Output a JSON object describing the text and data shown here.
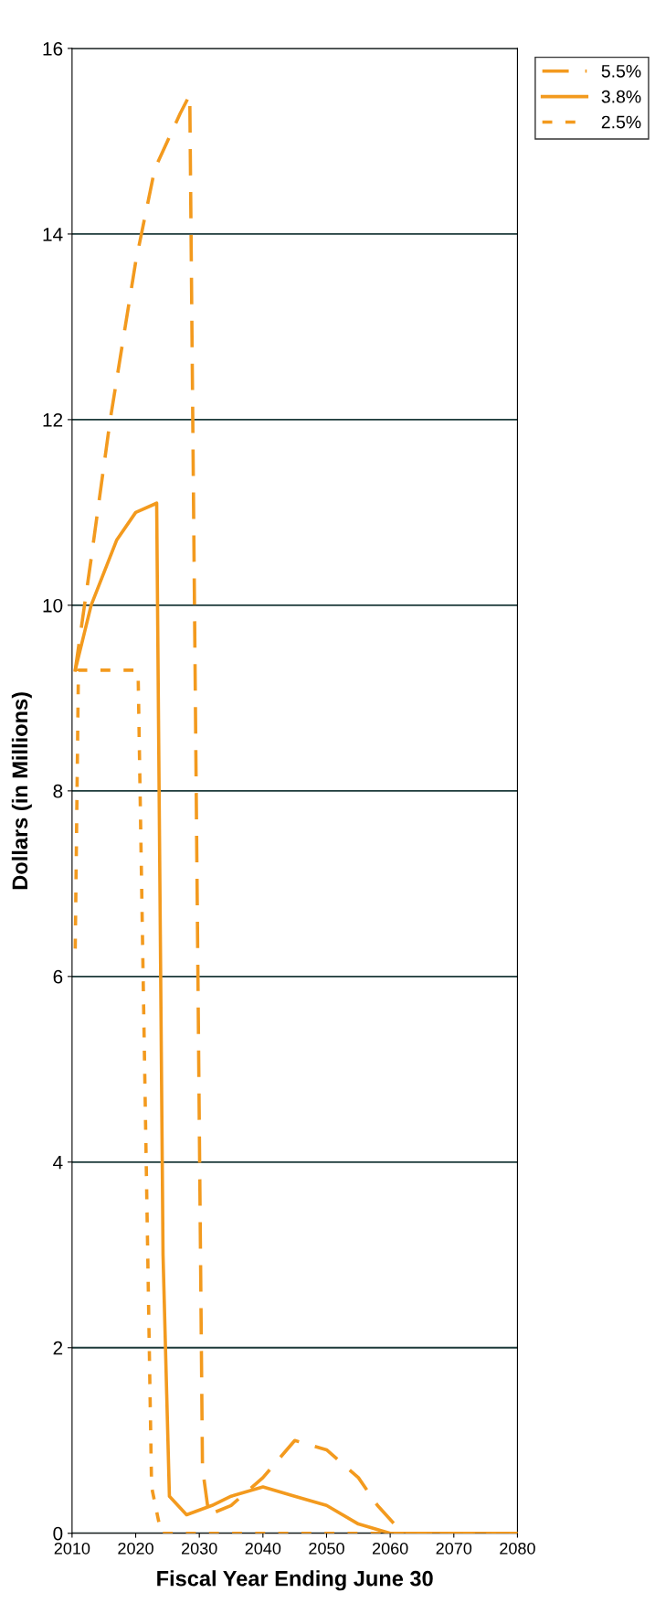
{
  "chart_data": {
    "type": "line",
    "xlabel": "Fiscal Year Ending June 30",
    "ylabel": "Dollars (in Millions)",
    "xlim": [
      2010,
      2080
    ],
    "xticks": [
      2010,
      2020,
      2030,
      2040,
      2050,
      2060,
      2070,
      2080
    ],
    "ylim": [
      0,
      16
    ],
    "yticks": [
      0,
      2,
      4,
      6,
      8,
      10,
      12,
      14,
      16
    ],
    "grid": "y",
    "legend": "right",
    "marker": "none",
    "series": [
      {
        "name": "5.5%",
        "color": "#f39a1e",
        "line_style": "dashed",
        "x": [
          2010.5,
          2013,
          2016,
          2020,
          2023,
          2027,
          2028.5,
          2030.5,
          2031.5,
          2035,
          2040,
          2045,
          2050,
          2055,
          2058,
          2062,
          2080
        ],
        "values": [
          9.3,
          10.5,
          12,
          13.7,
          14.7,
          15.3,
          15.5,
          0.7,
          0.2,
          0.3,
          0.6,
          1,
          0.9,
          0.6,
          0.3,
          0,
          0
        ]
      },
      {
        "name": "3.8%",
        "color": "#f39a1e",
        "line_style": "solid",
        "x": [
          2010.5,
          2013,
          2017,
          2020,
          2023.3,
          2024.3,
          2025.3,
          2028,
          2032,
          2035,
          2040,
          2045,
          2050,
          2055,
          2060,
          2080
        ],
        "values": [
          9.3,
          10,
          10.7,
          11,
          11.1,
          3,
          0.4,
          0.2,
          0.3,
          0.4,
          0.5,
          0.4,
          0.3,
          0.1,
          0,
          0
        ]
      },
      {
        "name": "2.5%",
        "color": "#f39a1e",
        "line_style": "dotted",
        "x": [
          2010.5,
          2011,
          2015,
          2020,
          2020.4,
          2022.5,
          2024,
          2030,
          2040,
          2050,
          2060,
          2080
        ],
        "values": [
          6.3,
          9.3,
          9.3,
          9.3,
          9.2,
          0.5,
          0,
          0,
          0,
          0,
          0,
          0
        ]
      }
    ]
  }
}
